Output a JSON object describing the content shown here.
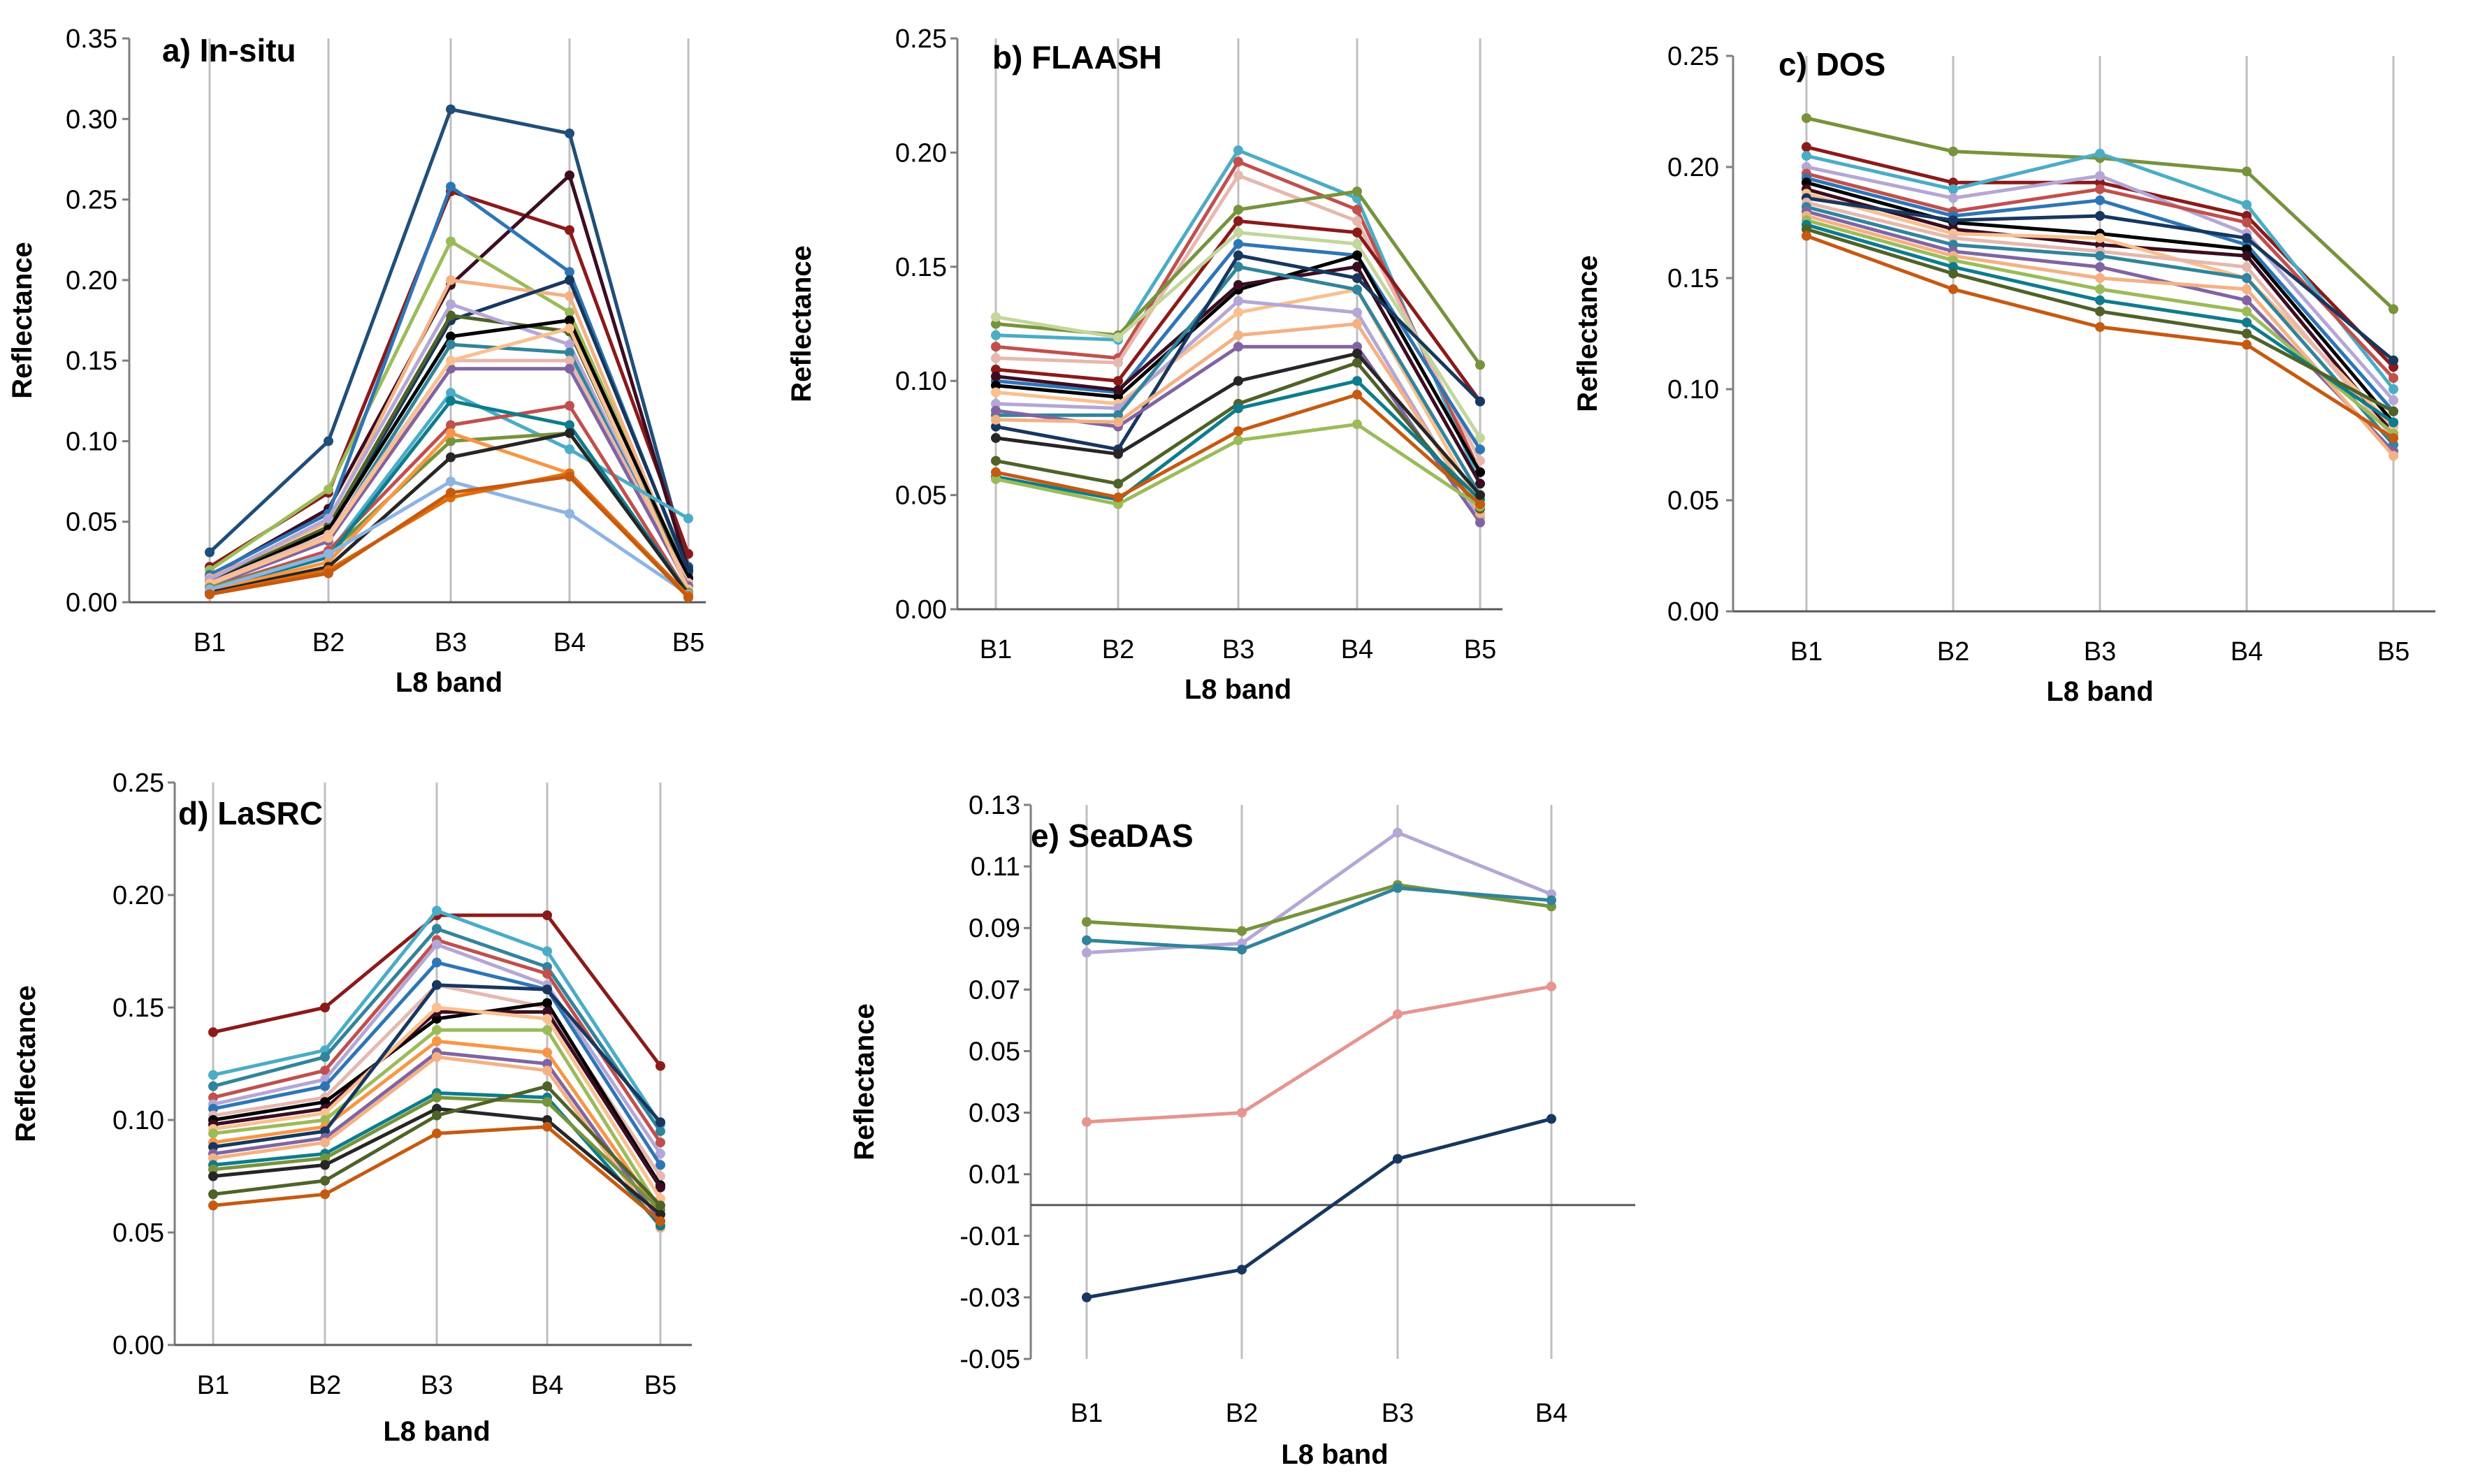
{
  "chart_data": [
    {
      "id": "a",
      "type": "line",
      "title": "a) In-situ",
      "xlabel": "L8 band",
      "ylabel": "Reflectance",
      "categories": [
        "B1",
        "B2",
        "B3",
        "B4",
        "B5"
      ],
      "ylim": [
        0,
        0.35
      ],
      "yticks": [
        0,
        0.05,
        0.1,
        0.15,
        0.2,
        0.25,
        0.3,
        0.35
      ],
      "ytick_labels": [
        "0.00",
        "0.05",
        "0.10",
        "0.15",
        "0.20",
        "0.25",
        "0.30",
        "0.35"
      ],
      "grid": "vertical",
      "series": [
        {
          "color": "#1f4e79",
          "values": [
            0.031,
            0.1,
            0.306,
            0.291,
            0.022
          ]
        },
        {
          "color": "#8b1a1a",
          "values": [
            0.022,
            0.068,
            0.255,
            0.231,
            0.03
          ]
        },
        {
          "color": "#3c0d22",
          "values": [
            0.016,
            0.058,
            0.197,
            0.265,
            0.02
          ]
        },
        {
          "color": "#9bbb59",
          "values": [
            0.02,
            0.07,
            0.224,
            0.18,
            0.015
          ]
        },
        {
          "color": "#2e75b6",
          "values": [
            0.017,
            0.055,
            0.258,
            0.205,
            0.018
          ]
        },
        {
          "color": "#f4b183",
          "values": [
            0.015,
            0.05,
            0.2,
            0.19,
            0.012
          ]
        },
        {
          "color": "#17375e",
          "values": [
            0.012,
            0.045,
            0.175,
            0.2,
            0.02
          ]
        },
        {
          "color": "#4f6228",
          "values": [
            0.013,
            0.047,
            0.178,
            0.168,
            0.01
          ]
        },
        {
          "color": "#b4a7d6",
          "values": [
            0.014,
            0.052,
            0.185,
            0.16,
            0.008
          ]
        },
        {
          "color": "#000000",
          "values": [
            0.012,
            0.045,
            0.165,
            0.175,
            0.015
          ]
        },
        {
          "color": "#31849b",
          "values": [
            0.01,
            0.04,
            0.16,
            0.155,
            0.01
          ]
        },
        {
          "color": "#e6b8af",
          "values": [
            0.012,
            0.042,
            0.15,
            0.15,
            0.012
          ]
        },
        {
          "color": "#8064a2",
          "values": [
            0.01,
            0.038,
            0.145,
            0.145,
            0.01
          ]
        },
        {
          "color": "#fac090",
          "values": [
            0.011,
            0.04,
            0.15,
            0.17,
            0.008
          ]
        },
        {
          "color": "#4bacc6",
          "values": [
            0.008,
            0.03,
            0.13,
            0.095,
            0.052
          ]
        },
        {
          "color": "#c0504d",
          "values": [
            0.009,
            0.032,
            0.11,
            0.122,
            0.005
          ]
        },
        {
          "color": "#77933c",
          "values": [
            0.009,
            0.03,
            0.1,
            0.105,
            0.006
          ]
        },
        {
          "color": "#0e7c8c",
          "values": [
            0.008,
            0.028,
            0.125,
            0.11,
            0.005
          ]
        },
        {
          "color": "#f79646",
          "values": [
            0.007,
            0.025,
            0.105,
            0.08,
            0.004
          ]
        },
        {
          "color": "#262626",
          "values": [
            0.006,
            0.022,
            0.09,
            0.105,
            0.005
          ]
        },
        {
          "color": "#8eb4e3",
          "values": [
            0.008,
            0.03,
            0.075,
            0.055,
            0.005
          ]
        },
        {
          "color": "#e36c0a",
          "values": [
            0.005,
            0.02,
            0.065,
            0.08,
            0.004
          ]
        },
        {
          "color": "#c55a11",
          "values": [
            0.005,
            0.018,
            0.068,
            0.078,
            0.003
          ]
        }
      ]
    },
    {
      "id": "b",
      "type": "line",
      "title": "b) FLAASH",
      "xlabel": "L8 band",
      "ylabel": "Reflectance",
      "categories": [
        "B1",
        "B2",
        "B3",
        "B4",
        "B5"
      ],
      "ylim": [
        0,
        0.25
      ],
      "yticks": [
        0,
        0.05,
        0.1,
        0.15,
        0.2,
        0.25
      ],
      "ytick_labels": [
        "0.00",
        "0.05",
        "0.10",
        "0.15",
        "0.20",
        "0.25"
      ],
      "grid": "vertical",
      "series": [
        {
          "color": "#4bacc6",
          "values": [
            0.12,
            0.118,
            0.201,
            0.18,
            0.055
          ]
        },
        {
          "color": "#c0504d",
          "values": [
            0.115,
            0.11,
            0.196,
            0.175,
            0.06
          ]
        },
        {
          "color": "#e6b8af",
          "values": [
            0.11,
            0.108,
            0.19,
            0.17,
            0.065
          ]
        },
        {
          "color": "#77933c",
          "values": [
            0.125,
            0.12,
            0.175,
            0.183,
            0.107
          ]
        },
        {
          "color": "#8b1a1a",
          "values": [
            0.105,
            0.1,
            0.17,
            0.165,
            0.091
          ]
        },
        {
          "color": "#c3d69b",
          "values": [
            0.128,
            0.119,
            0.165,
            0.16,
            0.075
          ]
        },
        {
          "color": "#2e75b6",
          "values": [
            0.1,
            0.095,
            0.16,
            0.155,
            0.07
          ]
        },
        {
          "color": "#000000",
          "values": [
            0.098,
            0.093,
            0.14,
            0.155,
            0.06
          ]
        },
        {
          "color": "#3c0d22",
          "values": [
            0.102,
            0.096,
            0.142,
            0.15,
            0.055
          ]
        },
        {
          "color": "#fac090",
          "values": [
            0.095,
            0.09,
            0.13,
            0.14,
            0.045
          ]
        },
        {
          "color": "#b4a7d6",
          "values": [
            0.09,
            0.088,
            0.135,
            0.13,
            0.04
          ]
        },
        {
          "color": "#31849b",
          "values": [
            0.085,
            0.085,
            0.15,
            0.14,
            0.05
          ]
        },
        {
          "color": "#17375e",
          "values": [
            0.08,
            0.07,
            0.155,
            0.145,
            0.091
          ]
        },
        {
          "color": "#8064a2",
          "values": [
            0.087,
            0.08,
            0.115,
            0.115,
            0.038
          ]
        },
        {
          "color": "#f4b183",
          "values": [
            0.083,
            0.082,
            0.12,
            0.125,
            0.042
          ]
        },
        {
          "color": "#4f6228",
          "values": [
            0.065,
            0.055,
            0.09,
            0.108,
            0.044
          ]
        },
        {
          "color": "#0e7c8c",
          "values": [
            0.058,
            0.048,
            0.088,
            0.1,
            0.048
          ]
        },
        {
          "color": "#9bbb59",
          "values": [
            0.057,
            0.046,
            0.074,
            0.081,
            0.045
          ]
        },
        {
          "color": "#c55a11",
          "values": [
            0.06,
            0.049,
            0.078,
            0.094,
            0.046
          ]
        },
        {
          "color": "#262626",
          "values": [
            0.075,
            0.068,
            0.1,
            0.112,
            0.05
          ]
        }
      ]
    },
    {
      "id": "c",
      "type": "line",
      "title": "c) DOS",
      "xlabel": "L8 band",
      "ylabel": "Reflectance",
      "categories": [
        "B1",
        "B2",
        "B3",
        "B4",
        "B5"
      ],
      "ylim": [
        0,
        0.25
      ],
      "yticks": [
        0,
        0.05,
        0.1,
        0.15,
        0.2,
        0.25
      ],
      "ytick_labels": [
        "0.00",
        "0.05",
        "0.10",
        "0.15",
        "0.20",
        "0.25"
      ],
      "grid": "vertical",
      "series": [
        {
          "color": "#77933c",
          "values": [
            0.222,
            0.207,
            0.204,
            0.198,
            0.136
          ]
        },
        {
          "color": "#8b1a1a",
          "values": [
            0.209,
            0.193,
            0.193,
            0.178,
            0.11
          ]
        },
        {
          "color": "#4bacc6",
          "values": [
            0.205,
            0.19,
            0.206,
            0.183,
            0.1
          ]
        },
        {
          "color": "#b4a7d6",
          "values": [
            0.2,
            0.186,
            0.196,
            0.17,
            0.095
          ]
        },
        {
          "color": "#c0504d",
          "values": [
            0.197,
            0.18,
            0.19,
            0.175,
            0.105
          ]
        },
        {
          "color": "#2e75b6",
          "values": [
            0.195,
            0.178,
            0.185,
            0.165,
            0.09
          ]
        },
        {
          "color": "#000000",
          "values": [
            0.193,
            0.175,
            0.17,
            0.163,
            0.085
          ]
        },
        {
          "color": "#3c0d22",
          "values": [
            0.19,
            0.172,
            0.165,
            0.16,
            0.08
          ]
        },
        {
          "color": "#fac090",
          "values": [
            0.188,
            0.17,
            0.168,
            0.15,
            0.083
          ]
        },
        {
          "color": "#17375e",
          "values": [
            0.186,
            0.176,
            0.178,
            0.168,
            0.113
          ]
        },
        {
          "color": "#e6b8af",
          "values": [
            0.184,
            0.168,
            0.162,
            0.155,
            0.078
          ]
        },
        {
          "color": "#31849b",
          "values": [
            0.182,
            0.165,
            0.16,
            0.15,
            0.075
          ]
        },
        {
          "color": "#8064a2",
          "values": [
            0.18,
            0.162,
            0.155,
            0.14,
            0.072
          ]
        },
        {
          "color": "#f4b183",
          "values": [
            0.178,
            0.16,
            0.15,
            0.145,
            0.07
          ]
        },
        {
          "color": "#9bbb59",
          "values": [
            0.176,
            0.158,
            0.145,
            0.135,
            0.08
          ]
        },
        {
          "color": "#0e7c8c",
          "values": [
            0.174,
            0.155,
            0.14,
            0.13,
            0.085
          ]
        },
        {
          "color": "#4f6228",
          "values": [
            0.172,
            0.152,
            0.135,
            0.125,
            0.09
          ]
        },
        {
          "color": "#c55a11",
          "values": [
            0.169,
            0.145,
            0.128,
            0.12,
            0.078
          ]
        }
      ]
    },
    {
      "id": "d",
      "type": "line",
      "title": "d) LaSRC",
      "xlabel": "L8 band",
      "ylabel": "Reflectance",
      "categories": [
        "B1",
        "B2",
        "B3",
        "B4",
        "B5"
      ],
      "ylim": [
        0,
        0.25
      ],
      "yticks": [
        0,
        0.05,
        0.1,
        0.15,
        0.2,
        0.25
      ],
      "ytick_labels": [
        "0.00",
        "0.05",
        "0.10",
        "0.15",
        "0.20",
        "0.25"
      ],
      "grid": "vertical",
      "series": [
        {
          "color": "#8b1a1a",
          "values": [
            0.139,
            0.15,
            0.191,
            0.191,
            0.124
          ]
        },
        {
          "color": "#4bacc6",
          "values": [
            0.12,
            0.131,
            0.193,
            0.175,
            0.098
          ]
        },
        {
          "color": "#31849b",
          "values": [
            0.115,
            0.128,
            0.185,
            0.168,
            0.095
          ]
        },
        {
          "color": "#c0504d",
          "values": [
            0.11,
            0.122,
            0.18,
            0.165,
            0.09
          ]
        },
        {
          "color": "#b4a7d6",
          "values": [
            0.107,
            0.118,
            0.178,
            0.16,
            0.085
          ]
        },
        {
          "color": "#2e75b6",
          "values": [
            0.105,
            0.115,
            0.17,
            0.158,
            0.08
          ]
        },
        {
          "color": "#e6b8af",
          "values": [
            0.102,
            0.11,
            0.16,
            0.15,
            0.075
          ]
        },
        {
          "color": "#000000",
          "values": [
            0.1,
            0.108,
            0.145,
            0.152,
            0.071
          ]
        },
        {
          "color": "#3c0d22",
          "values": [
            0.098,
            0.105,
            0.148,
            0.148,
            0.07
          ]
        },
        {
          "color": "#fac090",
          "values": [
            0.096,
            0.103,
            0.15,
            0.145,
            0.065
          ]
        },
        {
          "color": "#9bbb59",
          "values": [
            0.094,
            0.1,
            0.14,
            0.14,
            0.06
          ]
        },
        {
          "color": "#f79646",
          "values": [
            0.09,
            0.097,
            0.135,
            0.13,
            0.058
          ]
        },
        {
          "color": "#17375e",
          "values": [
            0.088,
            0.095,
            0.16,
            0.158,
            0.099
          ]
        },
        {
          "color": "#8064a2",
          "values": [
            0.085,
            0.092,
            0.13,
            0.125,
            0.055
          ]
        },
        {
          "color": "#f4b183",
          "values": [
            0.083,
            0.09,
            0.128,
            0.122,
            0.052
          ]
        },
        {
          "color": "#0e7c8c",
          "values": [
            0.08,
            0.085,
            0.112,
            0.11,
            0.053
          ]
        },
        {
          "color": "#77933c",
          "values": [
            0.078,
            0.083,
            0.11,
            0.108,
            0.06
          ]
        },
        {
          "color": "#262626",
          "values": [
            0.075,
            0.08,
            0.105,
            0.1,
            0.058
          ]
        },
        {
          "color": "#4f6228",
          "values": [
            0.067,
            0.073,
            0.102,
            0.115,
            0.062
          ]
        },
        {
          "color": "#c55a11",
          "values": [
            0.062,
            0.067,
            0.094,
            0.097,
            0.055
          ]
        }
      ]
    },
    {
      "id": "e",
      "type": "line",
      "title": "e) SeaDAS",
      "xlabel": "L8 band",
      "ylabel": "Reflectance",
      "categories": [
        "B1",
        "B2",
        "B3",
        "B4"
      ],
      "ylim": [
        -0.05,
        0.13
      ],
      "yticks": [
        -0.05,
        -0.03,
        -0.01,
        0.01,
        0.03,
        0.05,
        0.07,
        0.09,
        0.11,
        0.13
      ],
      "ytick_labels": [
        "-0.05",
        "-0.03",
        "-0.01",
        "0.01",
        "0.03",
        "0.05",
        "0.07",
        "0.09",
        "0.11",
        "0.13"
      ],
      "grid": "vertical",
      "series": [
        {
          "color": "#b4a7d6",
          "values": [
            0.082,
            0.085,
            0.121,
            0.101
          ]
        },
        {
          "color": "#77933c",
          "values": [
            0.092,
            0.089,
            0.104,
            0.097
          ]
        },
        {
          "color": "#31849b",
          "values": [
            0.086,
            0.083,
            0.103,
            0.099
          ]
        },
        {
          "color": "#e6958f",
          "values": [
            0.027,
            0.03,
            0.062,
            0.071
          ]
        },
        {
          "color": "#17375e",
          "values": [
            -0.03,
            -0.021,
            0.015,
            0.028
          ]
        }
      ]
    }
  ]
}
